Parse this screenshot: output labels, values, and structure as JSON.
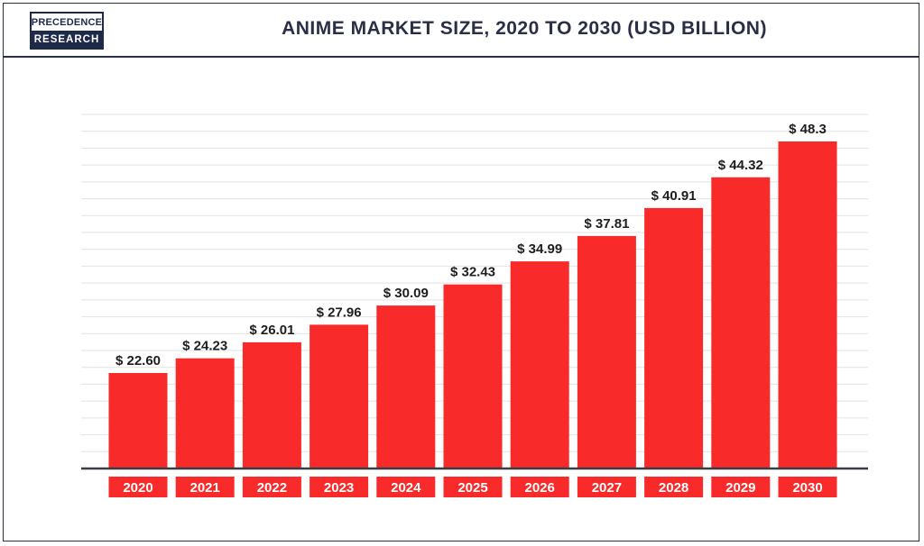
{
  "logo": {
    "line1": "PRECEDENCE",
    "line2": "RESEARCH"
  },
  "colors": {
    "bar": "#f82a2a",
    "axis": "#3a3d44",
    "grid": "#e2e2e2",
    "frame": "#2b2f45",
    "text": "#1e1e1e",
    "category_label": "#ffffff"
  },
  "chart_data": {
    "type": "bar",
    "title": "ANIME MARKET SIZE, 2020 TO 2030 (USD BILLION)",
    "xlabel": "",
    "ylabel": "",
    "categories": [
      "2020",
      "2021",
      "2022",
      "2023",
      "2024",
      "2025",
      "2026",
      "2027",
      "2028",
      "2029",
      "2030"
    ],
    "values": [
      22.6,
      24.23,
      26.01,
      27.96,
      30.09,
      32.43,
      34.99,
      37.81,
      40.91,
      44.32,
      48.3
    ],
    "value_labels": [
      "$ 22.60",
      "$ 24.23",
      "$ 26.01",
      "$ 27.96",
      "$ 30.09",
      "$ 32.43",
      "$ 34.99",
      "$ 37.81",
      "$ 40.91",
      "$ 44.32",
      "$ 48.3"
    ],
    "ylim": [
      12,
      51.3
    ],
    "grid": true,
    "legend": "none"
  }
}
